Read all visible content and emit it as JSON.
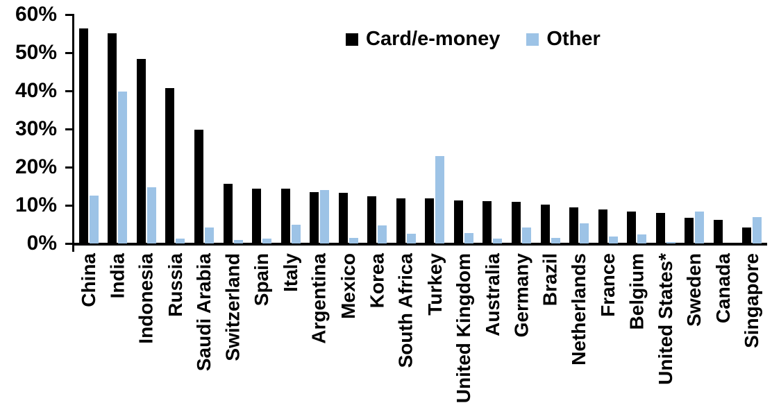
{
  "chart_data": {
    "type": "bar",
    "title": "",
    "xlabel": "",
    "ylabel": "",
    "ylim": [
      0,
      60
    ],
    "yticks": [
      "0%",
      "10%",
      "20%",
      "30%",
      "40%",
      "50%",
      "60%"
    ],
    "ytick_values": [
      0,
      10,
      20,
      30,
      40,
      50,
      60
    ],
    "grid": false,
    "legend_position": "top-center",
    "background_color": "#ffffff",
    "axis_color": "#000000",
    "categories": [
      "China",
      "India",
      "Indonesia",
      "Russia",
      "Saudi Arabia",
      "Switzerland",
      "Spain",
      "Italy",
      "Argentina",
      "Mexico",
      "Korea",
      "South Africa",
      "Turkey",
      "United Kingdom",
      "Australia",
      "Germany",
      "Brazil",
      "Netherlands",
      "France",
      "Belgium",
      "United States*",
      "Sweden",
      "Canada",
      "Singapore"
    ],
    "series": [
      {
        "name": "Card/e-money",
        "color": "#000000",
        "values": [
          56.3,
          55.1,
          48.4,
          40.7,
          29.9,
          15.7,
          14.3,
          14.4,
          13.5,
          13.2,
          12.4,
          11.9,
          11.8,
          11.3,
          11.0,
          10.9,
          10.1,
          9.5,
          8.9,
          8.3,
          8.0,
          6.8,
          6.2,
          4.1
        ]
      },
      {
        "name": "Other",
        "color": "#9DC3E6",
        "values": [
          12.5,
          39.8,
          14.7,
          1.2,
          4.2,
          0.9,
          1.2,
          4.9,
          14.0,
          1.5,
          4.8,
          2.6,
          22.9,
          2.8,
          1.3,
          4.2,
          1.5,
          5.2,
          1.8,
          2.4,
          0.3,
          8.3,
          0,
          6.9
        ]
      }
    ]
  }
}
